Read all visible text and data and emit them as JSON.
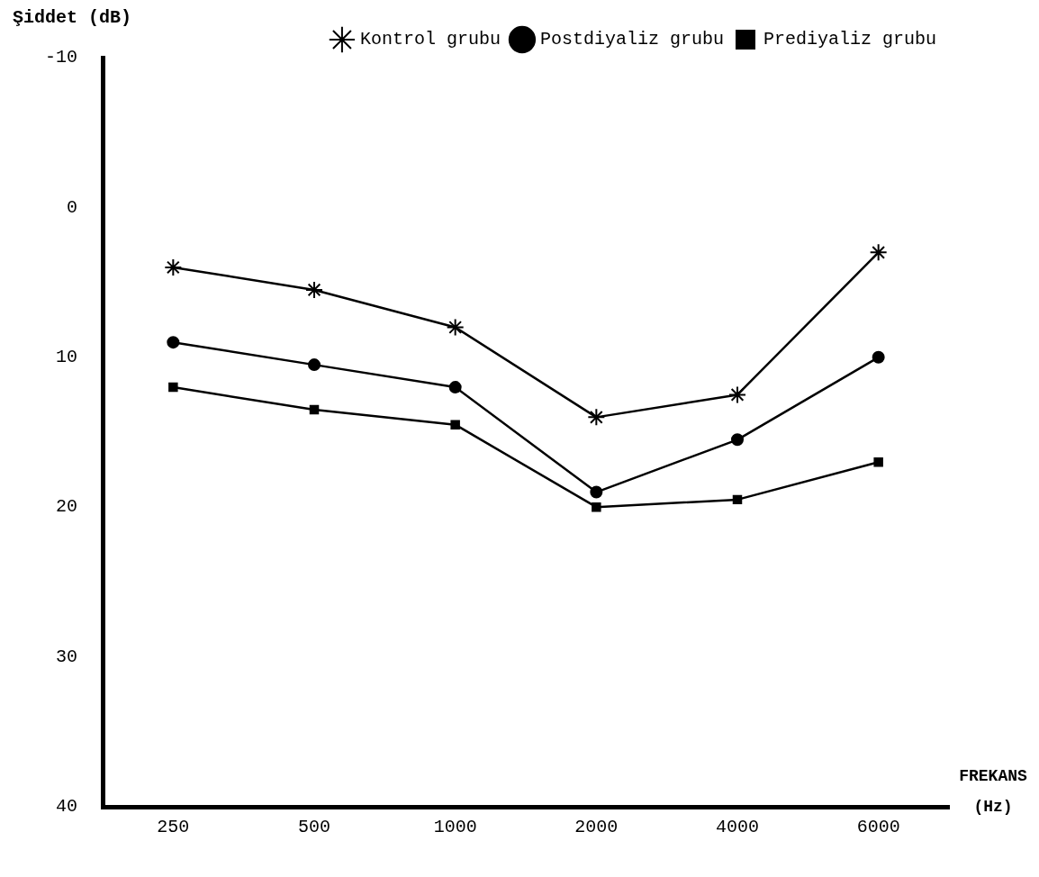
{
  "chart_data": {
    "type": "line",
    "xlabel": "FREKANS (Hz)",
    "ylabel": "Şiddet (dB)",
    "categories": [
      "250",
      "500",
      "1000",
      "2000",
      "4000",
      "6000"
    ],
    "ylim": [
      40,
      -10
    ],
    "yticks": [
      -10,
      0,
      10,
      20,
      30,
      40
    ],
    "grid": false,
    "legend": "top right",
    "series": [
      {
        "name": "Kontrol grubu",
        "color": "#000000",
        "marker": "cross",
        "values": [
          4,
          5.5,
          8,
          14,
          12.5,
          3
        ]
      },
      {
        "name": "Postdiyaliz grubu",
        "color": "#000000",
        "marker": "circle",
        "values": [
          9,
          10.5,
          12,
          19,
          15.5,
          10
        ]
      },
      {
        "name": "Prediyaliz grubu",
        "color": "#000000",
        "marker": "square",
        "values": [
          12,
          13.5,
          14.5,
          20,
          19.5,
          17
        ]
      }
    ]
  }
}
